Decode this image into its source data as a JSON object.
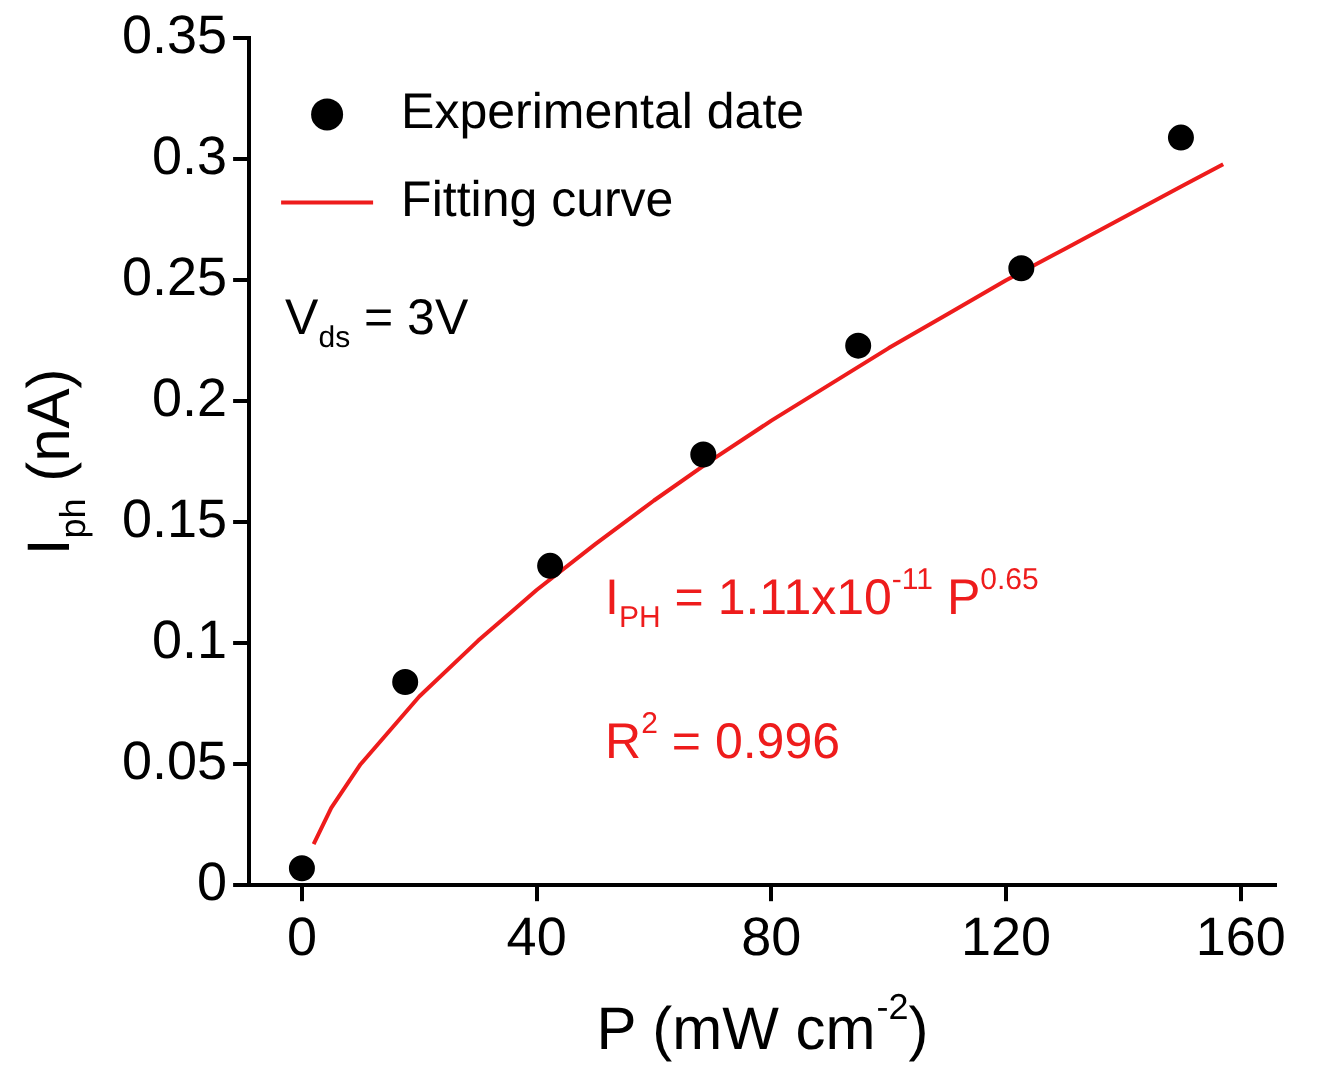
{
  "chart_data": {
    "type": "scatter",
    "xlabel": "P (mW cm$^{-2}$)",
    "ylabel": "I$_{ph}$ (nA)",
    "xlim": [
      -9,
      166
    ],
    "xticks": [
      0,
      40,
      80,
      120,
      160
    ],
    "ylim": [
      0,
      0.35
    ],
    "yticks": [
      0,
      0.05,
      0.1,
      0.15,
      0.2,
      0.25,
      0.3,
      0.35
    ],
    "grid": false,
    "legend": "top left",
    "series": [
      {
        "name": "Experimental date",
        "marker": "circle",
        "color": "#000000",
        "x": [
          0,
          17.6,
          42.3,
          68.4,
          94.8,
          122.6,
          149.8
        ],
        "values": [
          0.007,
          0.084,
          0.132,
          0.178,
          0.223,
          0.255,
          0.309
        ]
      },
      {
        "name": "Fitting curve",
        "type": "line",
        "marker": "none",
        "line_style": "solid",
        "color": "#ee1c1c",
        "x": [
          2,
          5,
          10,
          20,
          30,
          40,
          50,
          60,
          70,
          80,
          90,
          100,
          110,
          120,
          130,
          140,
          150,
          157
        ],
        "values": [
          0.017,
          0.032,
          0.05,
          0.078,
          0.101,
          0.122,
          0.141,
          0.159,
          0.176,
          0.192,
          0.207,
          0.222,
          0.236,
          0.25,
          0.263,
          0.276,
          0.289,
          0.298
        ]
      }
    ],
    "annotations": [
      "V$_{ds}$ = 3V",
      "I$_{PH}$ = 1.11x10$^{-11}$ P$^{0.65}$",
      "R$^{2}$ = 0.996"
    ]
  }
}
